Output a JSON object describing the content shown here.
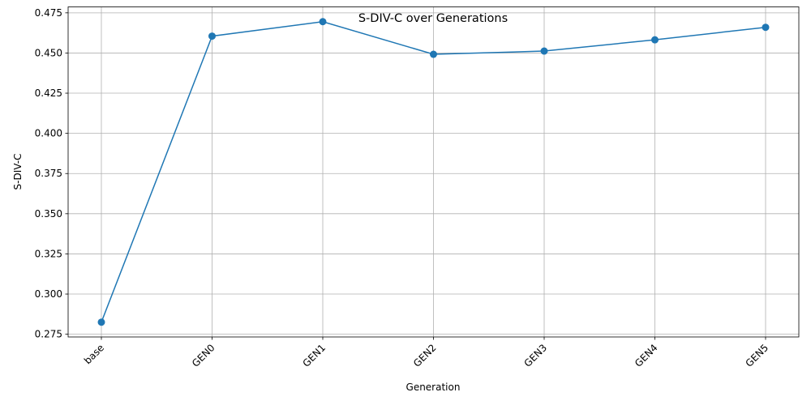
{
  "chart_data": {
    "type": "line",
    "title": "S-DIV-C over Generations",
    "xlabel": "Generation",
    "ylabel": "S-DIV-C",
    "categories": [
      "base",
      "GEN0",
      "GEN1",
      "GEN2",
      "GEN3",
      "GEN4",
      "GEN5"
    ],
    "series": [
      {
        "values": [
          0.2825,
          0.4605,
          0.4695,
          0.4492,
          0.4512,
          0.4582,
          0.466
        ]
      }
    ],
    "ylim": [
      0.2733,
      0.4787
    ],
    "yticks": [
      "0.275",
      "0.300",
      "0.325",
      "0.350",
      "0.375",
      "0.400",
      "0.425",
      "0.450",
      "0.475"
    ],
    "grid": true,
    "marker": "circle",
    "colors": {
      "line": "#1f77b4",
      "marker": "#1f77b4",
      "grid": "#b0b0b0"
    }
  }
}
